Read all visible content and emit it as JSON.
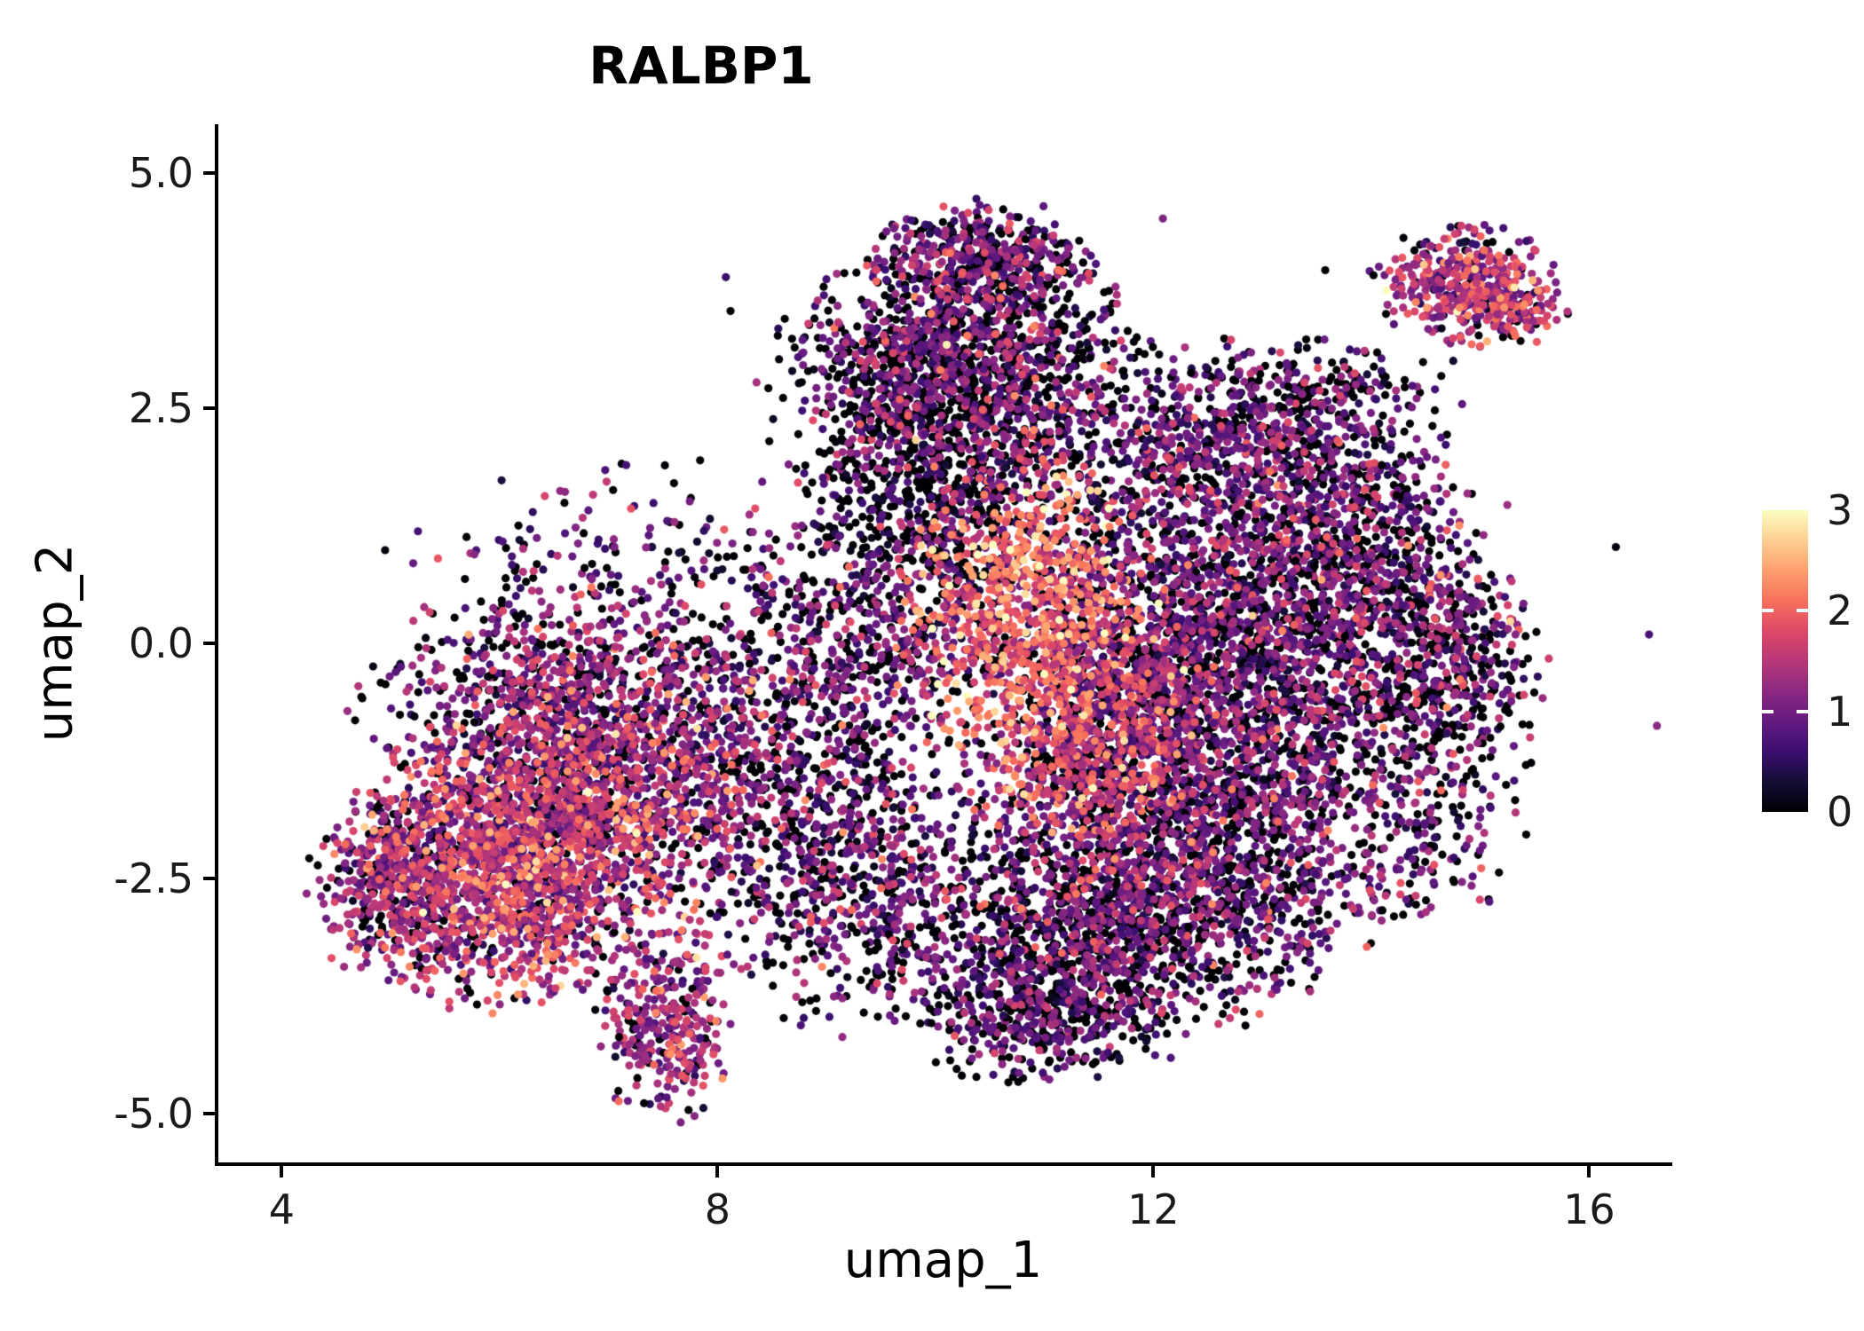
{
  "chart_data": {
    "type": "scatter",
    "title": "RALBP1",
    "xlabel": "umap_1",
    "ylabel": "umap_2",
    "xlim": [
      3.41,
      16.73
    ],
    "ylim": [
      -5.52,
      5.52
    ],
    "grid": false,
    "legend_position": "right",
    "x_ticks": [
      {
        "value": 4,
        "label": "4"
      },
      {
        "value": 8,
        "label": "8"
      },
      {
        "value": 12,
        "label": "12"
      },
      {
        "value": 16,
        "label": "16"
      }
    ],
    "y_ticks": [
      {
        "value": 5.0,
        "label": "5.0"
      },
      {
        "value": 2.5,
        "label": "2.5"
      },
      {
        "value": 0.0,
        "label": "0.0"
      },
      {
        "value": -2.5,
        "label": "-2.5"
      },
      {
        "value": -5.0,
        "label": "-5.0"
      }
    ],
    "point_radius_px": 4.6,
    "seed": 1234,
    "colorbar": {
      "range": [
        0,
        3
      ],
      "ticks": [
        {
          "value": 0,
          "label": "0"
        },
        {
          "value": 1,
          "label": "1"
        },
        {
          "value": 2,
          "label": "2"
        },
        {
          "value": 3,
          "label": "3"
        }
      ],
      "colormap": "magma",
      "stops": [
        [
          0.0,
          "#000004"
        ],
        [
          0.1,
          "#140e36"
        ],
        [
          0.2,
          "#3b0f70"
        ],
        [
          0.3,
          "#641a80"
        ],
        [
          0.4,
          "#8c2981"
        ],
        [
          0.5,
          "#b73779"
        ],
        [
          0.6,
          "#de4968"
        ],
        [
          0.7,
          "#f7705c"
        ],
        [
          0.8,
          "#fe9f6d"
        ],
        [
          0.9,
          "#fecf92"
        ],
        [
          1.0,
          "#fcfdbf"
        ]
      ]
    },
    "clusters": [
      {
        "name": "left-core-a",
        "cx": 6.0,
        "cy": -2.35,
        "sx": 0.7,
        "sy": 0.7,
        "n": 1600,
        "p0": 0.13,
        "mean": 1.4,
        "sd": 0.55
      },
      {
        "name": "left-core-b",
        "cx": 7.0,
        "cy": -1.55,
        "sx": 0.75,
        "sy": 0.75,
        "n": 1150,
        "p0": 0.15,
        "mean": 1.3,
        "sd": 0.55
      },
      {
        "name": "left-west-tip",
        "cx": 5.0,
        "cy": -2.6,
        "sx": 0.35,
        "sy": 0.45,
        "n": 330,
        "p0": 0.2,
        "mean": 1.15,
        "sd": 0.5
      },
      {
        "name": "left-north",
        "cx": 6.5,
        "cy": -0.45,
        "sx": 0.85,
        "sy": 0.5,
        "n": 550,
        "p0": 0.25,
        "mean": 1.05,
        "sd": 0.5
      },
      {
        "name": "left-upper-sparse",
        "cx": 7.0,
        "cy": 0.8,
        "sx": 0.95,
        "sy": 0.55,
        "n": 200,
        "p0": 0.35,
        "mean": 0.9,
        "sd": 0.5
      },
      {
        "name": "bottom-appendage",
        "cx": 7.5,
        "cy": -4.05,
        "sx": 0.28,
        "sy": 0.48,
        "n": 320,
        "p0": 0.16,
        "mean": 1.25,
        "sd": 0.5
      },
      {
        "name": "mid-bridge",
        "cx": 8.7,
        "cy": -1.0,
        "sx": 0.75,
        "sy": 0.85,
        "n": 650,
        "p0": 0.3,
        "mean": 0.95,
        "sd": 0.5
      },
      {
        "name": "bridge-south",
        "cx": 9.2,
        "cy": -2.6,
        "sx": 0.7,
        "sy": 0.7,
        "n": 600,
        "p0": 0.3,
        "mean": 0.95,
        "sd": 0.5
      },
      {
        "name": "mid-left-of-hot",
        "cx": 9.5,
        "cy": 0.35,
        "sx": 0.6,
        "sy": 0.7,
        "n": 450,
        "p0": 0.4,
        "mean": 0.9,
        "sd": 0.5
      },
      {
        "name": "top-lobe",
        "cx": 10.35,
        "cy": 3.0,
        "sx": 0.72,
        "sy": 0.62,
        "n": 1250,
        "p0": 0.35,
        "mean": 0.95,
        "sd": 0.55
      },
      {
        "name": "top-lobe-peak",
        "cx": 10.45,
        "cy": 4.1,
        "sx": 0.5,
        "sy": 0.28,
        "n": 380,
        "p0": 0.3,
        "mean": 1.0,
        "sd": 0.5
      },
      {
        "name": "top-left-sprinkle",
        "cx": 9.6,
        "cy": 2.5,
        "sx": 0.55,
        "sy": 0.7,
        "n": 380,
        "p0": 0.5,
        "mean": 0.8,
        "sd": 0.5
      },
      {
        "name": "central-black-band",
        "cx": 10.3,
        "cy": 1.6,
        "sx": 0.7,
        "sy": 0.5,
        "n": 430,
        "p0": 0.5,
        "mean": 0.75,
        "sd": 0.45
      },
      {
        "name": "hotspot",
        "cx": 10.85,
        "cy": 0.4,
        "sx": 0.55,
        "sy": 0.75,
        "n": 900,
        "p0": 0.1,
        "mean": 1.9,
        "sd": 0.5
      },
      {
        "name": "hotspot-south",
        "cx": 11.35,
        "cy": -1.0,
        "sx": 0.5,
        "sy": 0.6,
        "n": 520,
        "p0": 0.15,
        "mean": 1.7,
        "sd": 0.5
      },
      {
        "name": "connector",
        "cx": 11.9,
        "cy": -0.5,
        "sx": 0.5,
        "sy": 0.8,
        "n": 480,
        "p0": 0.3,
        "mean": 1.1,
        "sd": 0.5
      },
      {
        "name": "right-main",
        "cx": 12.9,
        "cy": 0.2,
        "sx": 0.95,
        "sy": 1.05,
        "n": 2100,
        "p0": 0.3,
        "mean": 0.95,
        "sd": 0.5
      },
      {
        "name": "right-upper",
        "cx": 12.8,
        "cy": 2.0,
        "sx": 0.9,
        "sy": 0.45,
        "n": 600,
        "p0": 0.3,
        "mean": 1.0,
        "sd": 0.5
      },
      {
        "name": "right-top-fringe",
        "cx": 13.2,
        "cy": 2.7,
        "sx": 0.8,
        "sy": 0.3,
        "n": 240,
        "p0": 0.45,
        "mean": 0.85,
        "sd": 0.5
      },
      {
        "name": "right-lower",
        "cx": 12.5,
        "cy": -1.9,
        "sx": 1.05,
        "sy": 0.75,
        "n": 1450,
        "p0": 0.3,
        "mean": 0.95,
        "sd": 0.5
      },
      {
        "name": "bottom-central",
        "cx": 11.5,
        "cy": -3.1,
        "sx": 0.95,
        "sy": 0.6,
        "n": 1250,
        "p0": 0.32,
        "mean": 0.9,
        "sd": 0.5
      },
      {
        "name": "bottom-tip",
        "cx": 10.9,
        "cy": -3.95,
        "sx": 0.55,
        "sy": 0.35,
        "n": 340,
        "p0": 0.35,
        "mean": 0.85,
        "sd": 0.45
      },
      {
        "name": "east-edge",
        "cx": 14.6,
        "cy": -0.9,
        "sx": 0.45,
        "sy": 1.0,
        "n": 340,
        "p0": 0.45,
        "mean": 0.9,
        "sd": 0.5
      },
      {
        "name": "east-knob",
        "cx": 15.0,
        "cy": -0.1,
        "sx": 0.3,
        "sy": 0.45,
        "n": 150,
        "p0": 0.35,
        "mean": 1.0,
        "sd": 0.5
      },
      {
        "name": "east-mid",
        "cx": 14.0,
        "cy": 0.8,
        "sx": 0.5,
        "sy": 0.7,
        "n": 380,
        "p0": 0.3,
        "mean": 1.0,
        "sd": 0.5
      },
      {
        "name": "satellite",
        "cx": 14.85,
        "cy": 3.8,
        "sx": 0.38,
        "sy": 0.3,
        "n": 400,
        "p0": 0.12,
        "mean": 1.3,
        "sd": 0.55
      },
      {
        "name": "satellite-east",
        "cx": 15.35,
        "cy": 3.55,
        "sx": 0.22,
        "sy": 0.22,
        "n": 100,
        "p0": 0.1,
        "mean": 1.55,
        "sd": 0.5
      },
      {
        "name": "outliers",
        "cx": 11.3,
        "cy": 0.3,
        "sx": 2.6,
        "sy": 2.1,
        "n": 90,
        "p0": 0.5,
        "mean": 0.8,
        "sd": 0.5
      }
    ]
  }
}
